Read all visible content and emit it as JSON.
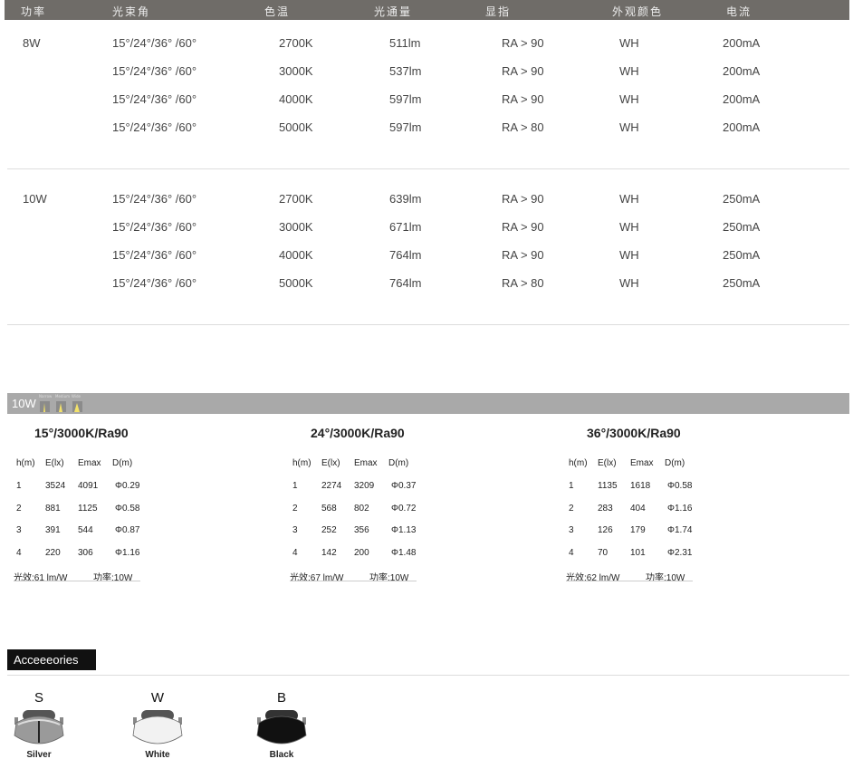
{
  "spec_table": {
    "headers": [
      "功率",
      "光束角",
      "色温",
      "光通量",
      "显指",
      "外观颜色",
      "电流"
    ],
    "groups": [
      {
        "power": "8W",
        "rows": [
          [
            "15°/24°/36° /60°",
            "2700K",
            "511lm",
            "RA > 90",
            "WH",
            "200mA"
          ],
          [
            "15°/24°/36° /60°",
            "3000K",
            "537lm",
            "RA > 90",
            "WH",
            "200mA"
          ],
          [
            "15°/24°/36° /60°",
            "4000K",
            "597lm",
            "RA > 90",
            "WH",
            "200mA"
          ],
          [
            "15°/24°/36° /60°",
            "5000K",
            "597lm",
            "RA > 80",
            "WH",
            "200mA"
          ]
        ]
      },
      {
        "power": "10W",
        "rows": [
          [
            "15°/24°/36° /60°",
            "2700K",
            "639lm",
            "RA > 90",
            "WH",
            "250mA"
          ],
          [
            "15°/24°/36° /60°",
            "3000K",
            "671lm",
            "RA > 90",
            "WH",
            "250mA"
          ],
          [
            "15°/24°/36° /60°",
            "4000K",
            "764lm",
            "RA > 90",
            "WH",
            "250mA"
          ],
          [
            "15°/24°/36° /60°",
            "5000K",
            "764lm",
            "RA > 80",
            "WH",
            "250mA"
          ]
        ]
      }
    ]
  },
  "beam_bar": {
    "power": "10W",
    "beams": [
      "Narrow",
      "Medium",
      "Wide"
    ]
  },
  "photometric": {
    "headers": [
      "h(m)",
      "E(lx)",
      "Emax",
      "D(m)"
    ],
    "tables": [
      {
        "title": "15°/3000K/Ra90",
        "rows": [
          [
            "1",
            "3524",
            "4091",
            "Φ0.29"
          ],
          [
            "2",
            "881",
            "1125",
            "Φ0.58"
          ],
          [
            "3",
            "391",
            "544",
            "Φ0.87"
          ],
          [
            "4",
            "220",
            "306",
            "Φ1.16"
          ]
        ],
        "efficacy": "光效:61 lm/W",
        "power": "功率:10W"
      },
      {
        "title": "24°/3000K/Ra90",
        "rows": [
          [
            "1",
            "2274",
            "3209",
            "Φ0.37"
          ],
          [
            "2",
            "568",
            "802",
            "Φ0.72"
          ],
          [
            "3",
            "252",
            "356",
            "Φ1.13"
          ],
          [
            "4",
            "142",
            "200",
            "Φ1.48"
          ]
        ],
        "efficacy": "光效:67 lm/W",
        "power": "功率:10W"
      },
      {
        "title": "36°/3000K/Ra90",
        "rows": [
          [
            "1",
            "1135",
            "1618",
            "Φ0.58"
          ],
          [
            "2",
            "283",
            "404",
            "Φ1.16"
          ],
          [
            "3",
            "126",
            "179",
            "Φ1.74"
          ],
          [
            "4",
            "70",
            "101",
            "Φ2.31"
          ]
        ],
        "efficacy": "光效:62 lm/W",
        "power": "功率:10W"
      }
    ]
  },
  "accessories": {
    "title": "Acceeeories",
    "items": [
      {
        "letter": "S",
        "name": "Silver",
        "color": "#9a9a9a"
      },
      {
        "letter": "W",
        "name": "White",
        "color": "#f2f2f2"
      },
      {
        "letter": "B",
        "name": "Black",
        "color": "#111111"
      }
    ]
  }
}
